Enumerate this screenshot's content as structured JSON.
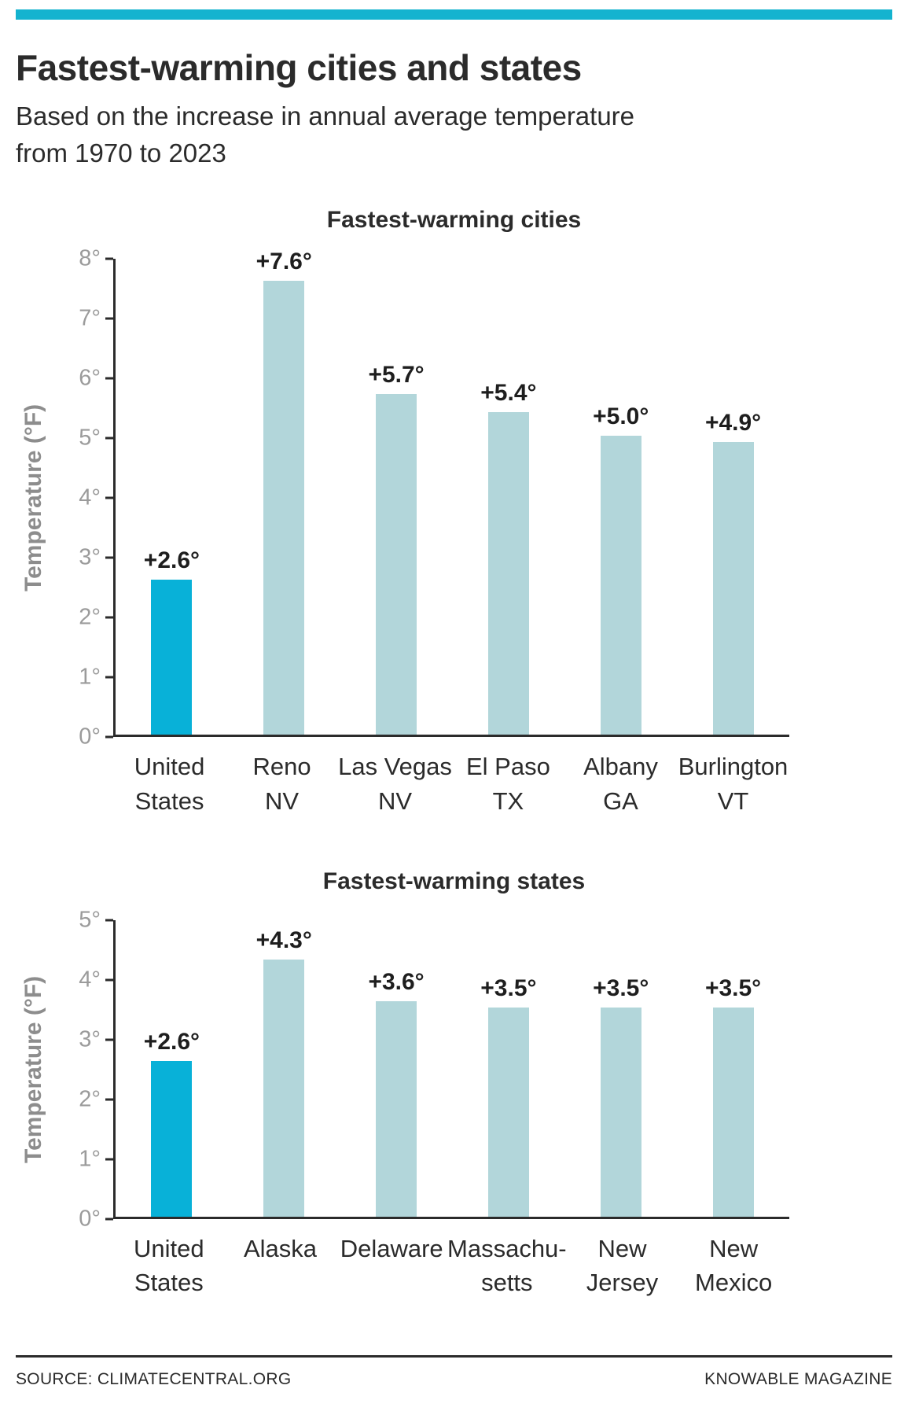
{
  "colors": {
    "accent_bar": "#14b3cf",
    "bar": "#b2d6da",
    "highlight": "#08b1d8",
    "axis": "#2b2b2b"
  },
  "header": {
    "title": "Fastest-warming cities and states",
    "subtitle_line1": "Based on the increase in annual average temperature",
    "subtitle_line2": "from 1970 to 2023"
  },
  "footer": {
    "source": "SOURCE: CLIMATECENTRAL.ORG",
    "credit": "KNOWABLE MAGAZINE"
  },
  "chart_data": [
    {
      "type": "bar",
      "title": "Fastest-warming cities",
      "ylabel": "Temperature (°F)",
      "ylim": [
        0,
        8
      ],
      "yticks": [
        "0°",
        "1°",
        "2°",
        "3°",
        "4°",
        "5°",
        "6°",
        "7°",
        "8°"
      ],
      "grid": false,
      "categories": [
        [
          "United",
          "States"
        ],
        [
          "Reno",
          "NV"
        ],
        [
          "Las Vegas",
          "NV"
        ],
        [
          "El Paso",
          "TX"
        ],
        [
          "Albany",
          "GA"
        ],
        [
          "Burlington",
          "VT"
        ]
      ],
      "values": [
        2.6,
        7.6,
        5.7,
        5.4,
        5.0,
        4.9
      ],
      "labels": [
        "+2.6°",
        "+7.6°",
        "+5.7°",
        "+5.4°",
        "+5.0°",
        "+4.9°"
      ],
      "highlight_index": 0
    },
    {
      "type": "bar",
      "title": "Fastest-warming states",
      "ylabel": "Temperature (°F)",
      "ylim": [
        0,
        5
      ],
      "yticks": [
        "0°",
        "1°",
        "2°",
        "3°",
        "4°",
        "5°"
      ],
      "grid": false,
      "categories": [
        [
          "United",
          "States"
        ],
        [
          "Alaska",
          ""
        ],
        [
          "Delaware",
          ""
        ],
        [
          "Massachu-",
          "setts"
        ],
        [
          "New",
          "Jersey"
        ],
        [
          "New",
          "Mexico"
        ]
      ],
      "values": [
        2.6,
        4.3,
        3.6,
        3.5,
        3.5,
        3.5
      ],
      "labels": [
        "+2.6°",
        "+4.3°",
        "+3.6°",
        "+3.5°",
        "+3.5°",
        "+3.5°"
      ],
      "highlight_index": 0
    }
  ]
}
